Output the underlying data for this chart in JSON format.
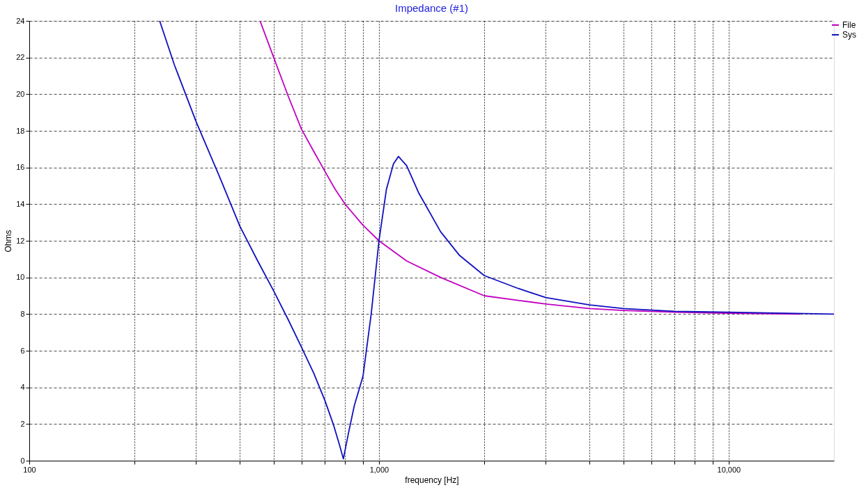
{
  "chart_data": {
    "type": "line",
    "title": "Impedance (#1)",
    "xlabel": "frequency [Hz]",
    "ylabel": "Ohms",
    "log": "x",
    "grid": true,
    "legend": "top right",
    "line_style": "solid",
    "marker": "none",
    "xlim": [
      100,
      20000
    ],
    "ylim": [
      0,
      24
    ],
    "xticks": [
      {
        "value": 100,
        "label": "100"
      },
      {
        "value": 200,
        "label": null
      },
      {
        "value": 300,
        "label": null
      },
      {
        "value": 400,
        "label": null
      },
      {
        "value": 500,
        "label": null
      },
      {
        "value": 600,
        "label": null
      },
      {
        "value": 700,
        "label": null
      },
      {
        "value": 800,
        "label": null
      },
      {
        "value": 900,
        "label": null
      },
      {
        "value": 1000,
        "label": "1,000"
      },
      {
        "value": 2000,
        "label": null
      },
      {
        "value": 3000,
        "label": null
      },
      {
        "value": 4000,
        "label": null
      },
      {
        "value": 5000,
        "label": null
      },
      {
        "value": 6000,
        "label": null
      },
      {
        "value": 7000,
        "label": null
      },
      {
        "value": 8000,
        "label": null
      },
      {
        "value": 9000,
        "label": null
      },
      {
        "value": 10000,
        "label": "10,000"
      }
    ],
    "yticks": [
      0,
      2,
      4,
      6,
      8,
      10,
      12,
      14,
      16,
      18,
      20,
      22,
      24
    ],
    "series": [
      {
        "name": "File",
        "color": "#c000c0",
        "x": [
          457,
          500,
          550,
          600,
          650,
          700,
          750,
          800,
          900,
          1000,
          1200,
          1500,
          2000,
          2500,
          3000,
          4000,
          5000,
          7000,
          10000,
          16000
        ],
        "values": [
          24,
          22,
          19.9,
          18.1,
          16.9,
          15.8,
          14.8,
          14,
          12.85,
          12,
          10.9,
          10,
          9,
          8.75,
          8.55,
          8.3,
          8.2,
          8.1,
          8.05,
          8.0
        ]
      },
      {
        "name": "Sys",
        "color": "#1010c0",
        "x": [
          236,
          260,
          300,
          350,
          400,
          450,
          500,
          550,
          600,
          650,
          700,
          740,
          770,
          791,
          820,
          850,
          900,
          950,
          1000,
          1050,
          1100,
          1137,
          1200,
          1300,
          1500,
          1700,
          2000,
          2500,
          3000,
          4000,
          5000,
          7000,
          10000,
          20000
        ],
        "values": [
          24,
          21.6,
          18.5,
          15.5,
          12.8,
          10.9,
          9.26,
          7.7,
          6.2,
          4.8,
          3.3,
          2.0,
          0.9,
          0.1,
          1.6,
          3.0,
          4.6,
          8,
          12,
          14.8,
          16.2,
          16.6,
          16.1,
          14.6,
          12.5,
          11.2,
          10.1,
          9.4,
          8.9,
          8.5,
          8.3,
          8.15,
          8.1,
          8.0
        ]
      }
    ]
  }
}
